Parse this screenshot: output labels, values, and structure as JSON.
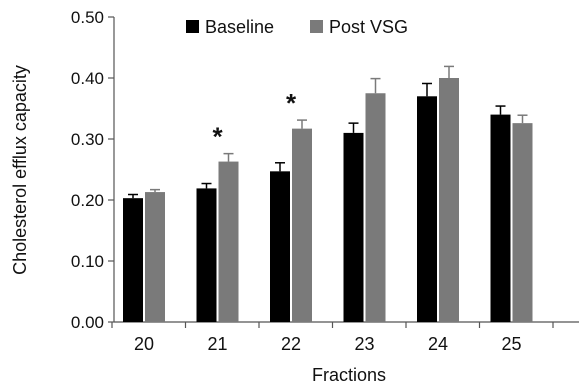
{
  "chart_data": {
    "type": "bar",
    "xlabel": "Fractions",
    "ylabel": "Cholesterol efflux capacity",
    "categories": [
      "20",
      "21",
      "22",
      "23",
      "24",
      "25"
    ],
    "ylim": [
      0,
      0.5
    ],
    "yticks": [
      "0.00",
      "0.10",
      "0.20",
      "0.30",
      "0.40",
      "0.50"
    ],
    "series": [
      {
        "name": "Baseline",
        "color": "#000000",
        "values": [
          0.203,
          0.219,
          0.247,
          0.31,
          0.37,
          0.34
        ],
        "errors": [
          0.006,
          0.008,
          0.014,
          0.016,
          0.021,
          0.014
        ]
      },
      {
        "name": "Post VSG",
        "color": "#7a7a7a",
        "values": [
          0.213,
          0.263,
          0.317,
          0.375,
          0.4,
          0.326
        ],
        "errors": [
          0.004,
          0.013,
          0.014,
          0.024,
          0.019,
          0.013
        ]
      }
    ],
    "annotations": [
      {
        "category": "21",
        "text": "*"
      },
      {
        "category": "22",
        "text": "*"
      }
    ],
    "legend": "top",
    "grid": false
  }
}
